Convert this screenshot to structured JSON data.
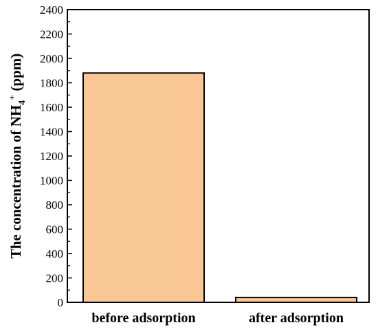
{
  "chart_data": {
    "type": "bar",
    "categories": [
      "before adsorption",
      "after adsorption"
    ],
    "values": [
      1880,
      40
    ],
    "xlabel": "",
    "ylabel": {
      "text": "The concentration of NH",
      "subscript": "4",
      "superscript": "+",
      "units": " (ppm)"
    },
    "ylim": [
      0,
      2400
    ],
    "yticks": [
      0,
      200,
      400,
      600,
      800,
      1000,
      1200,
      1400,
      1600,
      1800,
      2000,
      2200,
      2400
    ],
    "bar_color": "#f9c793",
    "bar_edge_color": "#000000",
    "grid": false,
    "legend": "none"
  }
}
